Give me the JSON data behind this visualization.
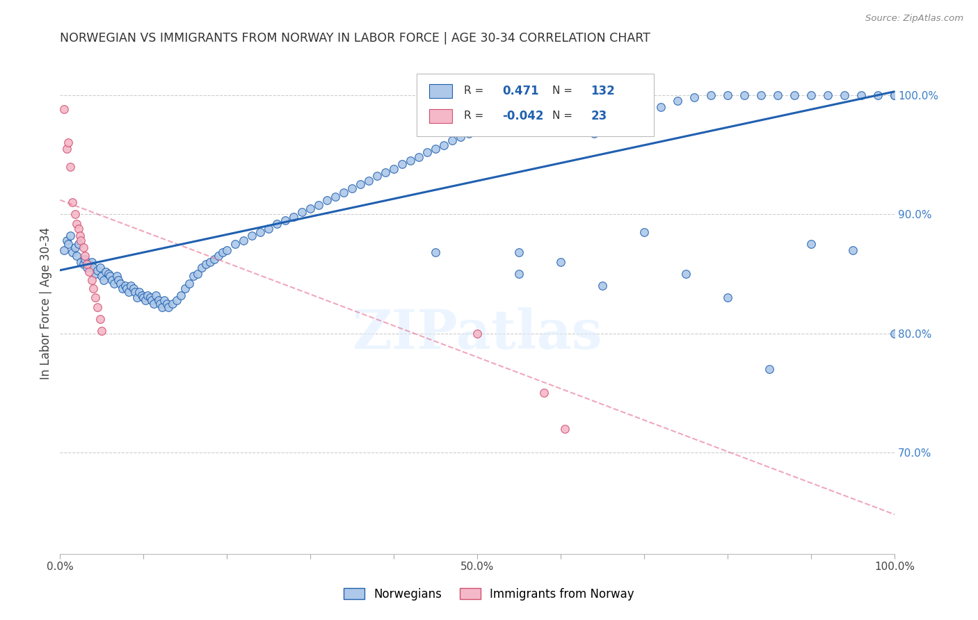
{
  "title": "NORWEGIAN VS IMMIGRANTS FROM NORWAY IN LABOR FORCE | AGE 30-34 CORRELATION CHART",
  "source": "Source: ZipAtlas.com",
  "ylabel": "In Labor Force | Age 30-34",
  "xlim": [
    0.0,
    1.0
  ],
  "ylim": [
    0.615,
    1.035
  ],
  "right_yticks": [
    0.7,
    0.8,
    0.9,
    1.0
  ],
  "right_yticklabels": [
    "70.0%",
    "80.0%",
    "90.0%",
    "100.0%"
  ],
  "xtick_positions": [
    0.0,
    0.1,
    0.2,
    0.3,
    0.4,
    0.5,
    0.6,
    0.7,
    0.8,
    0.9,
    1.0
  ],
  "xtick_labels": [
    "0.0%",
    "",
    "",
    "",
    "",
    "50.0%",
    "",
    "",
    "",
    "",
    "100.0%"
  ],
  "watermark": "ZIPatlas",
  "legend_r_norwegian": "0.471",
  "legend_n_norwegian": "132",
  "legend_r_immigrant": "-0.042",
  "legend_n_immigrant": "23",
  "norwegian_color": "#adc8e8",
  "immigrant_color": "#f5b8c8",
  "trendline_norwegian_color": "#2060b0",
  "trendline_immigrant_color": "#e87898",
  "background_color": "#ffffff",
  "grid_color": "#cccccc",
  "norwegian_x": [
    0.005,
    0.008,
    0.01,
    0.012,
    0.015,
    0.018,
    0.02,
    0.022,
    0.025,
    0.028,
    0.03,
    0.032,
    0.035,
    0.038,
    0.04,
    0.042,
    0.045,
    0.048,
    0.05,
    0.052,
    0.055,
    0.058,
    0.06,
    0.062,
    0.065,
    0.068,
    0.07,
    0.072,
    0.075,
    0.078,
    0.08,
    0.082,
    0.085,
    0.088,
    0.09,
    0.092,
    0.095,
    0.098,
    0.1,
    0.102,
    0.105,
    0.108,
    0.11,
    0.112,
    0.115,
    0.118,
    0.12,
    0.122,
    0.125,
    0.128,
    0.13,
    0.135,
    0.14,
    0.145,
    0.15,
    0.155,
    0.16,
    0.165,
    0.17,
    0.175,
    0.18,
    0.185,
    0.19,
    0.195,
    0.2,
    0.21,
    0.22,
    0.23,
    0.24,
    0.25,
    0.26,
    0.27,
    0.28,
    0.29,
    0.3,
    0.31,
    0.32,
    0.33,
    0.34,
    0.35,
    0.36,
    0.37,
    0.38,
    0.39,
    0.4,
    0.41,
    0.42,
    0.43,
    0.44,
    0.45,
    0.46,
    0.47,
    0.48,
    0.49,
    0.5,
    0.52,
    0.54,
    0.56,
    0.58,
    0.6,
    0.64,
    0.66,
    0.68,
    0.7,
    0.72,
    0.74,
    0.76,
    0.78,
    0.8,
    0.82,
    0.84,
    0.86,
    0.88,
    0.9,
    0.92,
    0.94,
    0.96,
    0.98,
    1.0,
    1.0,
    0.65,
    0.75,
    0.85,
    0.95,
    0.55,
    0.6,
    0.7,
    0.8,
    0.9,
    1.0,
    0.55,
    0.45
  ],
  "norwegian_y": [
    0.87,
    0.878,
    0.875,
    0.882,
    0.868,
    0.872,
    0.865,
    0.875,
    0.86,
    0.858,
    0.862,
    0.855,
    0.858,
    0.86,
    0.855,
    0.85,
    0.853,
    0.855,
    0.848,
    0.845,
    0.852,
    0.85,
    0.848,
    0.845,
    0.842,
    0.848,
    0.845,
    0.842,
    0.838,
    0.84,
    0.838,
    0.835,
    0.84,
    0.838,
    0.835,
    0.83,
    0.835,
    0.832,
    0.83,
    0.828,
    0.832,
    0.83,
    0.828,
    0.825,
    0.832,
    0.828,
    0.825,
    0.822,
    0.828,
    0.825,
    0.822,
    0.825,
    0.828,
    0.832,
    0.838,
    0.842,
    0.848,
    0.85,
    0.855,
    0.858,
    0.86,
    0.862,
    0.865,
    0.868,
    0.87,
    0.875,
    0.878,
    0.882,
    0.885,
    0.888,
    0.892,
    0.895,
    0.898,
    0.902,
    0.905,
    0.908,
    0.912,
    0.915,
    0.918,
    0.922,
    0.925,
    0.928,
    0.932,
    0.935,
    0.938,
    0.942,
    0.945,
    0.948,
    0.952,
    0.955,
    0.958,
    0.962,
    0.965,
    0.968,
    0.972,
    0.978,
    0.982,
    0.985,
    0.99,
    0.995,
    0.968,
    0.978,
    0.982,
    0.985,
    0.99,
    0.995,
    0.998,
    1.0,
    1.0,
    1.0,
    1.0,
    1.0,
    1.0,
    1.0,
    1.0,
    1.0,
    1.0,
    1.0,
    1.0,
    1.0,
    0.84,
    0.85,
    0.77,
    0.87,
    0.85,
    0.86,
    0.885,
    0.83,
    0.875,
    0.8,
    0.868,
    0.868
  ],
  "immigrant_x": [
    0.005,
    0.008,
    0.01,
    0.012,
    0.015,
    0.018,
    0.02,
    0.022,
    0.024,
    0.025,
    0.028,
    0.03,
    0.032,
    0.035,
    0.038,
    0.04,
    0.042,
    0.045,
    0.048,
    0.05,
    0.5,
    0.58,
    0.605
  ],
  "immigrant_y": [
    0.988,
    0.955,
    0.96,
    0.94,
    0.91,
    0.9,
    0.892,
    0.888,
    0.882,
    0.878,
    0.872,
    0.865,
    0.858,
    0.852,
    0.845,
    0.838,
    0.83,
    0.822,
    0.812,
    0.802,
    0.8,
    0.75,
    0.72
  ]
}
